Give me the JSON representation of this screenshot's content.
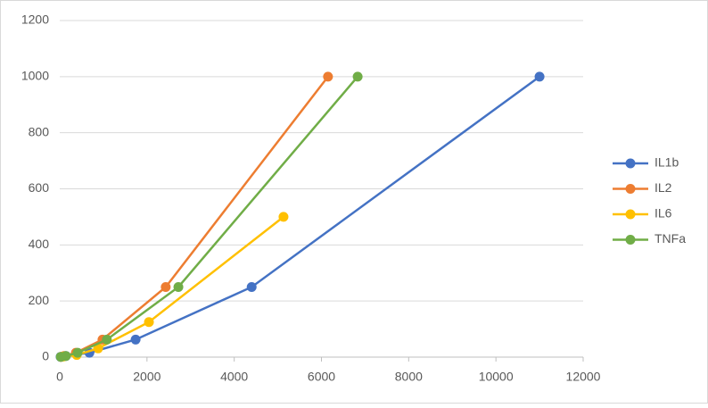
{
  "chart_data": {
    "type": "scatter",
    "series": [
      {
        "name": "IL1b",
        "color": "#4472c4",
        "x": [
          11000,
          4400,
          1740,
          680,
          140,
          20
        ],
        "values": [
          1000,
          250,
          62.5,
          15.6,
          3.9,
          0.98
        ]
      },
      {
        "name": "IL2",
        "color": "#ed7d31",
        "x": [
          6150,
          2430,
          980,
          370,
          100,
          30
        ],
        "values": [
          1000,
          250,
          62.5,
          15.6,
          3.9,
          0.98
        ]
      },
      {
        "name": "IL6",
        "color": "#ffc000",
        "x": [
          5130,
          2045,
          880,
          390,
          80
        ],
        "values": [
          500,
          125,
          31.25,
          7.8,
          1.95
        ]
      },
      {
        "name": "TNFa",
        "color": "#70ad47",
        "x": [
          6830,
          2720,
          1080,
          410,
          140,
          25
        ],
        "values": [
          1000,
          250,
          62.5,
          15.6,
          3.9,
          0.98
        ]
      }
    ],
    "xlim": [
      0,
      12000
    ],
    "xticks": [
      0,
      2000,
      4000,
      6000,
      8000,
      10000,
      12000
    ],
    "ylim": [
      0,
      1200
    ],
    "yticks": [
      0,
      200,
      400,
      600,
      800,
      1000,
      1200
    ],
    "grid": true,
    "legend": "right"
  }
}
